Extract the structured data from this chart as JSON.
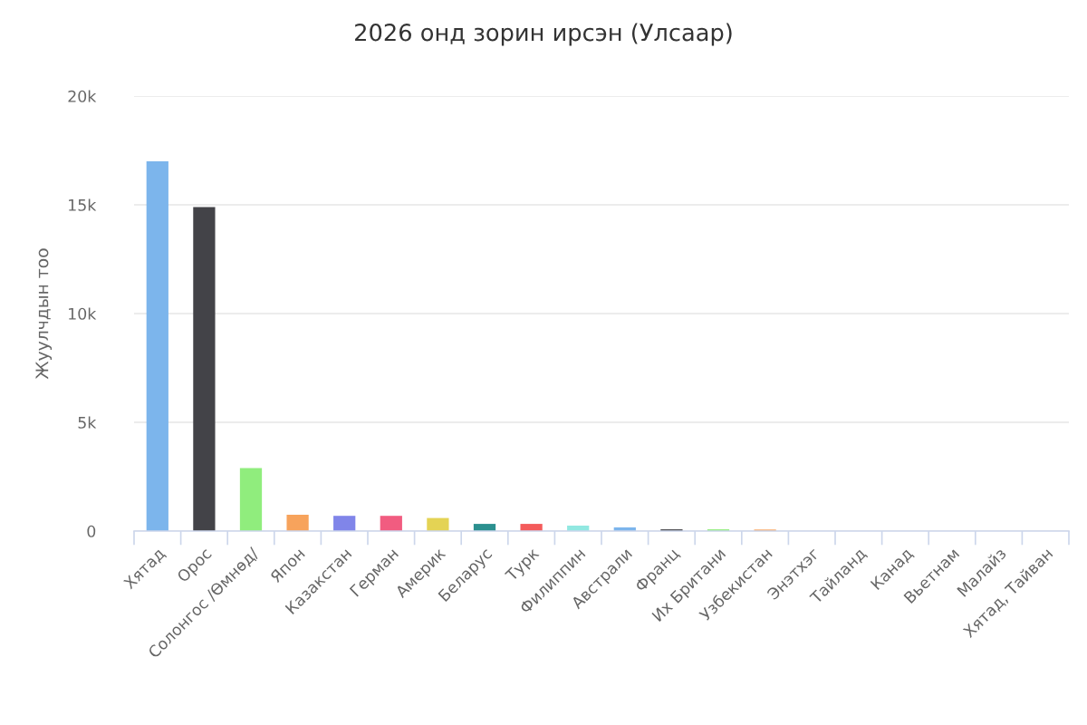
{
  "chart_data": {
    "type": "bar",
    "title": "2026 онд зорин ирсэн (Улсаар)",
    "ylabel": "Жуулчдын тоо",
    "categories": [
      "Хятад",
      "Орос",
      "Солонгос /Өмнөд/",
      "Япон",
      "Казакстан",
      "Герман",
      "Америк",
      "Беларус",
      "Турк",
      "Филиппин",
      "Австрали",
      "Франц",
      "Их Британи",
      "Узбекистан",
      "Энэтхэг",
      "Тайланд",
      "Канад",
      "Вьетнам",
      "Малайз",
      "Хятад, Тайван"
    ],
    "values": [
      17000,
      14900,
      2900,
      750,
      700,
      700,
      600,
      330,
      330,
      250,
      170,
      80,
      80,
      70,
      0,
      0,
      0,
      0,
      0,
      0
    ],
    "colors": [
      "#7cb5ec",
      "#434348",
      "#90ed7d",
      "#f7a35c",
      "#8085e9",
      "#f15c80",
      "#e4d354",
      "#2b908f",
      "#f45b5b",
      "#91e8e1",
      "#7cb5ec",
      "#434348",
      "#90ed7d",
      "#f7a35c",
      "#8085e9",
      "#f15c80",
      "#e4d354",
      "#2b908f",
      "#f45b5b",
      "#91e8e1"
    ],
    "ylim": [
      0,
      20000
    ],
    "yticks": [
      0,
      {
        "value": 5000,
        "label": "5k"
      },
      {
        "value": 10000,
        "label": "10k"
      },
      {
        "value": 15000,
        "label": "15k"
      },
      {
        "value": 20000,
        "label": "20k"
      }
    ],
    "grid": "y"
  }
}
